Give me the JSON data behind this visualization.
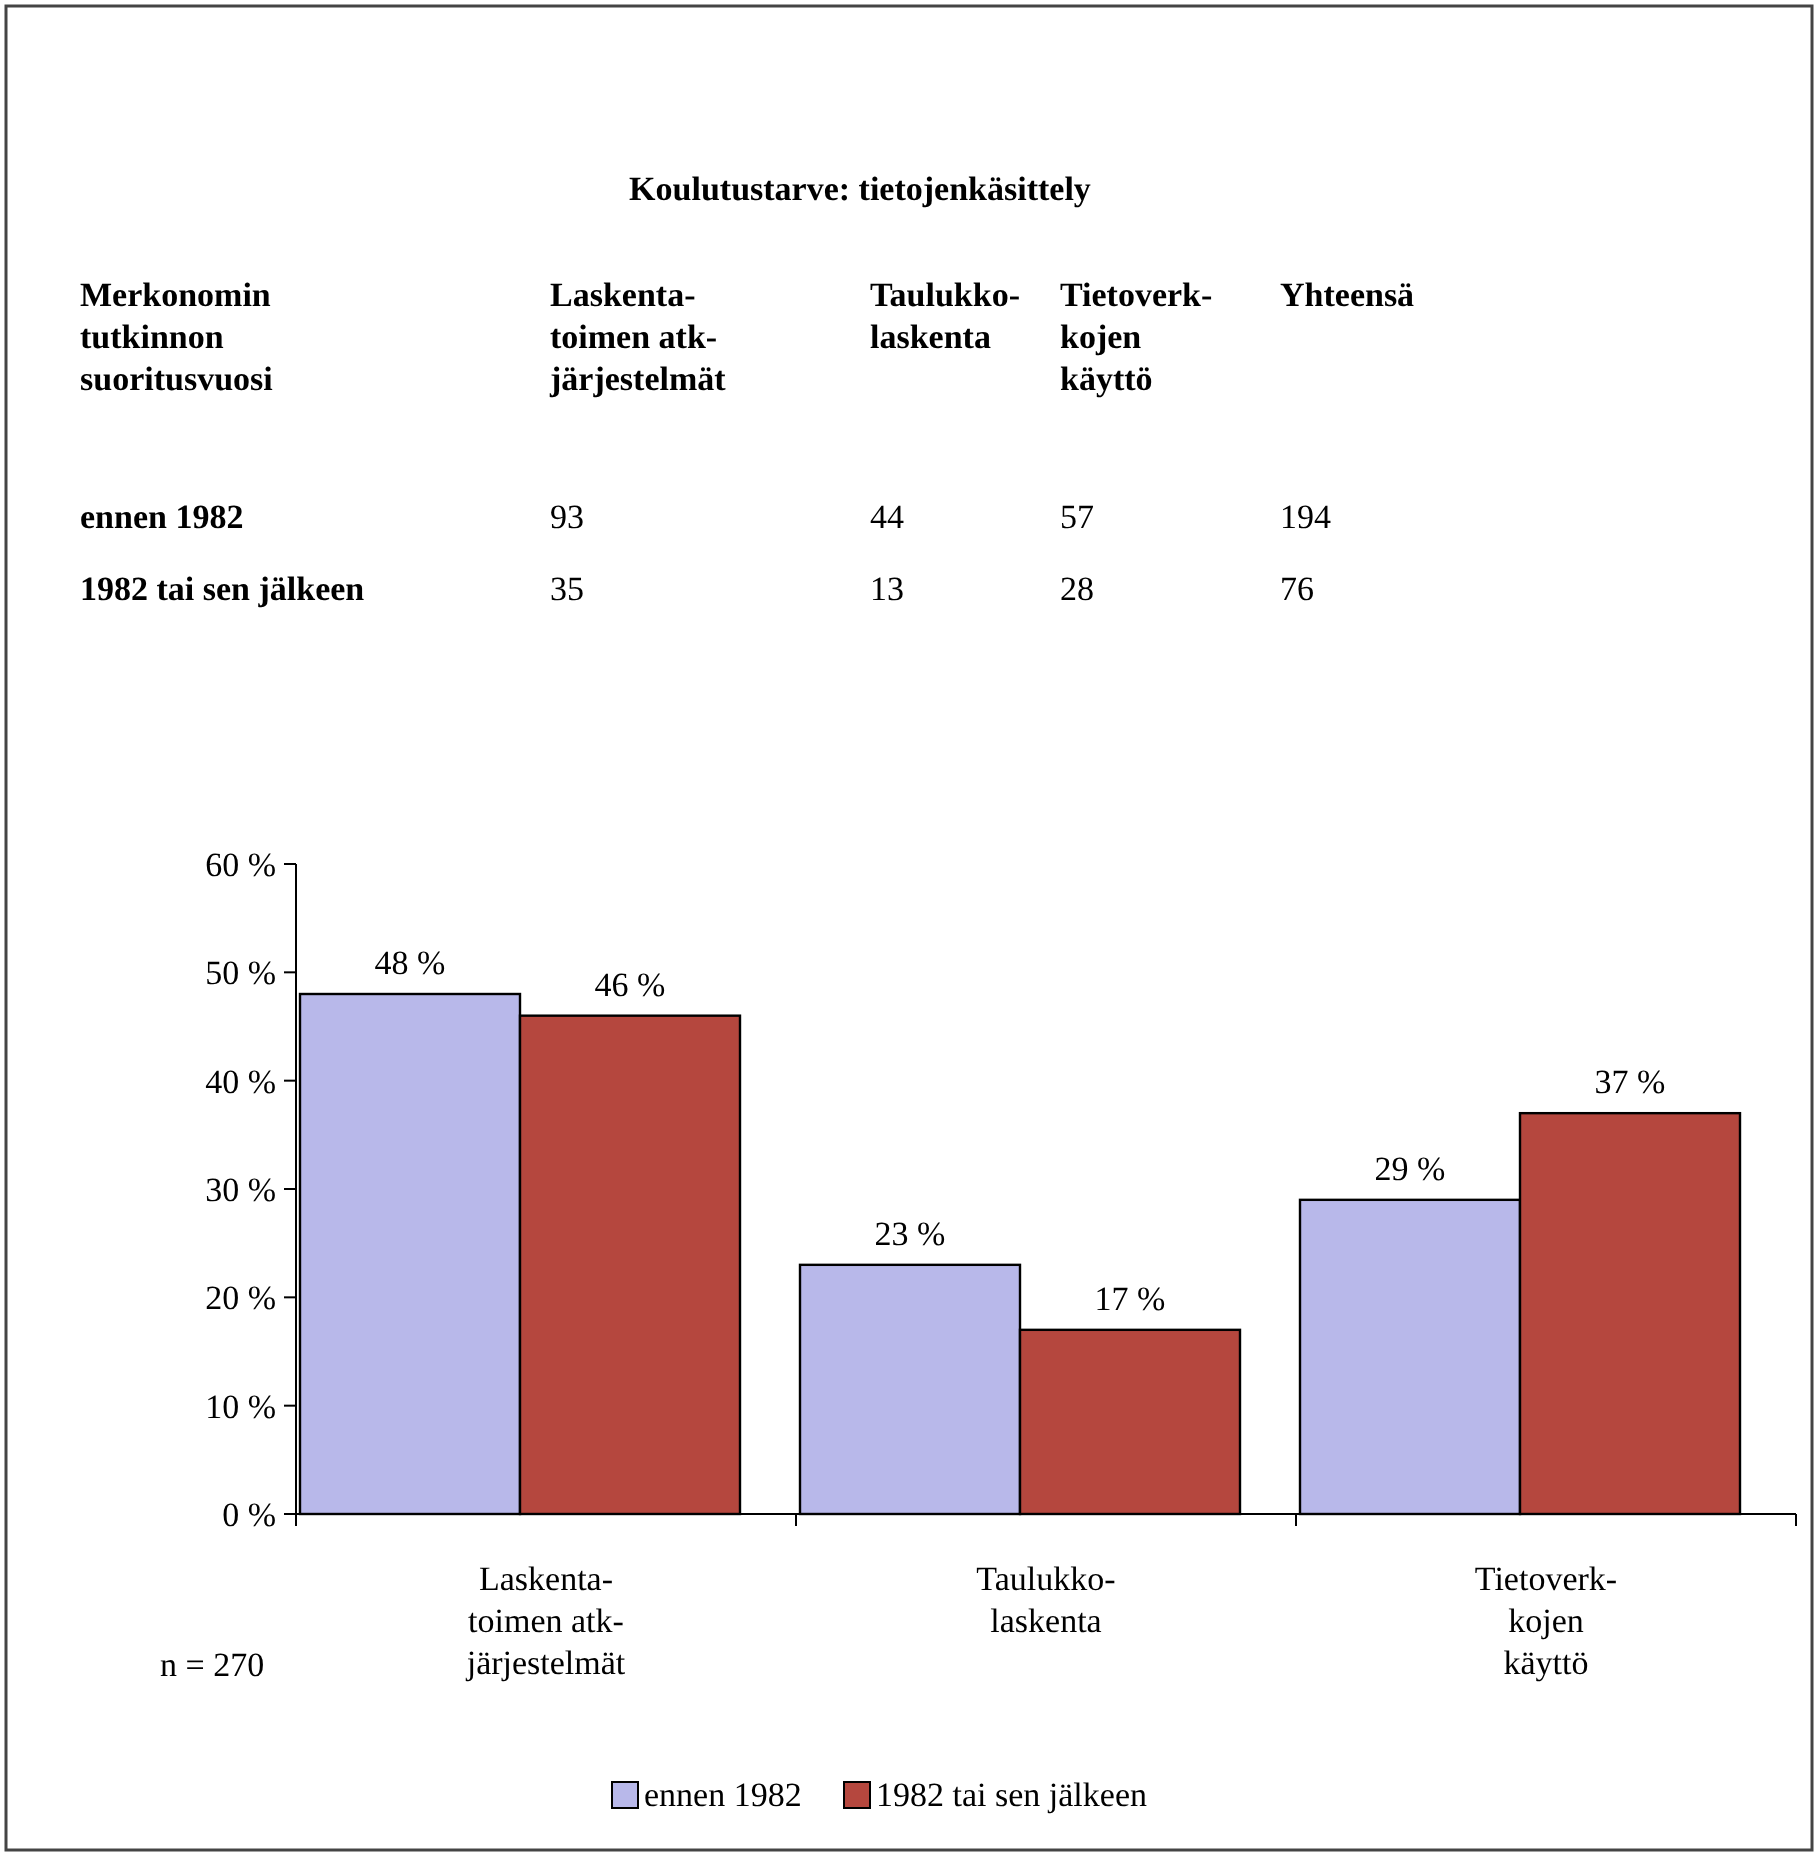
{
  "chart_data": [
    {
      "type": "heatmap",
      "title": "Koulutustarve: tietojenkäsittely",
      "ylabel": "Merkonomin\ntutkinnon\nsuoritusvuosi",
      "categories": [
        "Laskenta-\ntoimen atk-\njärjestelmät",
        "Taulukko-\nlaskenta",
        "Tietoverk-\nkojen\nkäyttö",
        "Yhteensä"
      ],
      "y_categories": [
        "ennen 1982",
        "1982 tai sen jälkeen"
      ],
      "cells": [
        [
          93,
          44,
          57,
          194
        ],
        [
          35,
          13,
          28,
          76
        ]
      ],
      "data_labels": true
    },
    {
      "type": "bar",
      "categories": [
        "Laskenta-\ntoimen atk-\njärjestelmät",
        "Taulukko-\nlaskenta",
        "Tietoverk-\nkojen\nkäyttö"
      ],
      "series": [
        {
          "name": "ennen 1982",
          "color": "#b8b8ea",
          "values": [
            48,
            23,
            29
          ]
        },
        {
          "name": "1982 tai sen jälkeen",
          "color": "#b5473e",
          "values": [
            46,
            17,
            37
          ]
        }
      ],
      "ylim": [
        0,
        60
      ],
      "yticks": [
        {
          "value": 0,
          "label": "0 %"
        },
        {
          "value": 10,
          "label": "10 %"
        },
        {
          "value": 20,
          "label": "20 %"
        },
        {
          "value": 30,
          "label": "30 %"
        },
        {
          "value": 40,
          "label": "40 %"
        },
        {
          "value": 50,
          "label": "50 %"
        },
        {
          "value": 60,
          "label": "60 %"
        }
      ],
      "value_labels": [
        [
          "48 %",
          "23 %",
          "29 %"
        ],
        [
          "46 %",
          "17 %",
          "37 %"
        ]
      ],
      "annotations": [
        "n = 270"
      ],
      "legend": "bottom",
      "grid": false
    }
  ]
}
